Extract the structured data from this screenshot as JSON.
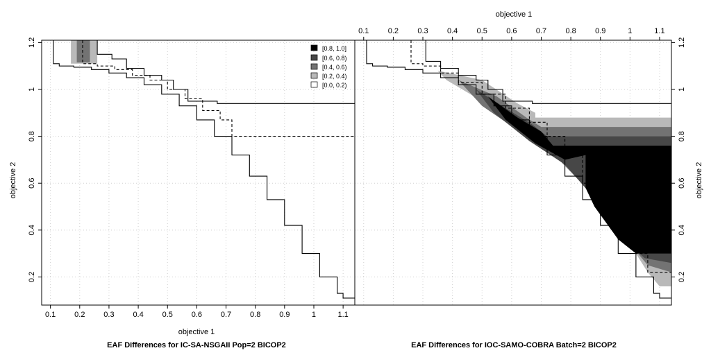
{
  "chart_data": {
    "type": "area",
    "xlim": [
      0.07,
      1.14
    ],
    "ylim": [
      0.08,
      1.21
    ],
    "grid": true,
    "x_ticks": [
      "0.1",
      "0.2",
      "0.3",
      "0.4",
      "0.5",
      "0.6",
      "0.7",
      "0.8",
      "0.9",
      "1",
      "1.1"
    ],
    "x_tick_values": [
      0.1,
      0.2,
      0.3,
      0.4,
      0.5,
      0.6,
      0.7,
      0.8,
      0.9,
      1.0,
      1.1
    ],
    "y_ticks": [
      "0.2",
      "0.4",
      "0.6",
      "0.8",
      "1",
      "1.2"
    ],
    "y_tick_values": [
      0.2,
      0.4,
      0.6,
      0.8,
      1.0,
      1.2
    ],
    "xlabel_bottom": "objective 1",
    "xlabel_top": "objective 1",
    "ylabel_right": "objective 2",
    "ylabel_left": "objective 2",
    "legend": {
      "position": "top-right of left panel",
      "entries": [
        {
          "label": "[0.8, 1.0]",
          "color": "#000000"
        },
        {
          "label": "[0.6, 0.8)",
          "color": "#474747"
        },
        {
          "label": "[0.4, 0.6)",
          "color": "#737373"
        },
        {
          "label": "[0.2, 0.4)",
          "color": "#b9b9b9"
        },
        {
          "label": "[0.0, 0.2)",
          "color": "#ffffff"
        }
      ]
    },
    "panels": [
      {
        "title": "EAF Differences for IC-SA-NSGAII Pop=2 BICOP2",
        "regions": [
          {
            "level": "[0.2, 0.4)",
            "color": "#b9b9b9",
            "points": [
              [
                0.17,
                1.21
              ],
              [
                0.17,
                1.11
              ],
              [
                0.26,
                1.11
              ],
              [
                0.26,
                1.21
              ]
            ]
          },
          {
            "level": "[0.4, 0.6)",
            "color": "#737373",
            "points": [
              [
                0.19,
                1.21
              ],
              [
                0.19,
                1.115
              ],
              [
                0.235,
                1.115
              ],
              [
                0.235,
                1.21
              ]
            ]
          }
        ],
        "lines": [
          {
            "name": "best",
            "style": "solid",
            "points": [
              [
                0.11,
                1.21
              ],
              [
                0.11,
                1.11
              ],
              [
                0.13,
                1.1
              ],
              [
                0.18,
                1.095
              ],
              [
                0.24,
                1.085
              ],
              [
                0.3,
                1.07
              ],
              [
                0.36,
                1.05
              ],
              [
                0.42,
                1.02
              ],
              [
                0.48,
                0.98
              ],
              [
                0.54,
                0.93
              ],
              [
                0.6,
                0.87
              ],
              [
                0.66,
                0.8
              ],
              [
                0.72,
                0.72
              ],
              [
                0.78,
                0.63
              ],
              [
                0.84,
                0.53
              ],
              [
                0.9,
                0.42
              ],
              [
                0.96,
                0.3
              ],
              [
                1.02,
                0.2
              ],
              [
                1.08,
                0.13
              ],
              [
                1.1,
                0.11
              ],
              [
                1.14,
                0.11
              ]
            ]
          },
          {
            "name": "median",
            "style": "dashed",
            "points": [
              [
                0.21,
                1.21
              ],
              [
                0.21,
                1.11
              ],
              [
                0.26,
                1.1
              ],
              [
                0.32,
                1.085
              ],
              [
                0.38,
                1.06
              ],
              [
                0.44,
                1.04
              ],
              [
                0.5,
                1.0
              ],
              [
                0.56,
                0.96
              ],
              [
                0.62,
                0.91
              ],
              [
                0.68,
                0.87
              ],
              [
                0.72,
                0.8
              ],
              [
                1.14,
                0.8
              ]
            ]
          },
          {
            "name": "worst",
            "style": "solid",
            "points": [
              [
                0.26,
                1.21
              ],
              [
                0.26,
                1.15
              ],
              [
                0.31,
                1.13
              ],
              [
                0.36,
                1.09
              ],
              [
                0.42,
                1.06
              ],
              [
                0.48,
                1.04
              ],
              [
                0.52,
                1.0
              ],
              [
                0.57,
                1.0
              ],
              [
                0.57,
                0.95
              ],
              [
                0.67,
                0.95
              ],
              [
                0.67,
                0.94
              ],
              [
                1.14,
                0.94
              ]
            ]
          }
        ]
      },
      {
        "title": "EAF Differences for IOC-SAMO-COBRA Batch=2 BICOP2",
        "regions": [
          {
            "level": "[0.2, 0.4)",
            "color": "#b9b9b9",
            "points": [
              [
                0.35,
                1.08
              ],
              [
                0.5,
                1.04
              ],
              [
                0.62,
                0.94
              ],
              [
                0.68,
                0.9
              ],
              [
                0.68,
                0.88
              ],
              [
                1.14,
                0.88
              ],
              [
                1.14,
                0.16
              ],
              [
                1.1,
                0.16
              ],
              [
                1.06,
                0.22
              ],
              [
                0.95,
                0.44
              ],
              [
                0.85,
                0.6
              ],
              [
                0.75,
                0.72
              ],
              [
                0.63,
                0.83
              ],
              [
                0.5,
                0.95
              ],
              [
                0.38,
                1.04
              ]
            ]
          },
          {
            "level": "[0.4, 0.6)",
            "color": "#737373",
            "points": [
              [
                0.42,
                1.04
              ],
              [
                0.55,
                0.97
              ],
              [
                0.65,
                0.88
              ],
              [
                0.7,
                0.84
              ],
              [
                1.14,
                0.84
              ],
              [
                1.14,
                0.22
              ],
              [
                1.06,
                0.25
              ],
              [
                0.96,
                0.4
              ],
              [
                0.86,
                0.57
              ],
              [
                0.76,
                0.7
              ],
              [
                0.65,
                0.8
              ],
              [
                0.5,
                0.93
              ]
            ]
          },
          {
            "level": "[0.6, 0.8)",
            "color": "#474747",
            "points": [
              [
                0.48,
                1.0
              ],
              [
                0.58,
                0.92
              ],
              [
                0.67,
                0.85
              ],
              [
                0.72,
                0.8
              ],
              [
                1.14,
                0.8
              ],
              [
                1.14,
                0.26
              ],
              [
                1.05,
                0.28
              ],
              [
                0.96,
                0.38
              ],
              [
                0.87,
                0.55
              ],
              [
                0.78,
                0.68
              ],
              [
                0.66,
                0.78
              ],
              [
                0.54,
                0.9
              ]
            ]
          },
          {
            "level": "[0.8, 1.0]",
            "color": "#000000",
            "points": [
              [
                0.52,
                0.97
              ],
              [
                0.62,
                0.88
              ],
              [
                0.7,
                0.82
              ],
              [
                0.74,
                0.76
              ],
              [
                1.14,
                0.76
              ],
              [
                1.14,
                0.3
              ],
              [
                1.02,
                0.3
              ],
              [
                0.96,
                0.36
              ],
              [
                0.88,
                0.5
              ],
              [
                0.85,
                0.58
              ],
              [
                0.85,
                0.72
              ],
              [
                0.78,
                0.7
              ],
              [
                0.68,
                0.77
              ],
              [
                0.58,
                0.87
              ]
            ]
          }
        ],
        "lines": [
          {
            "name": "best",
            "style": "solid",
            "points": [
              [
                0.11,
                1.21
              ],
              [
                0.11,
                1.11
              ],
              [
                0.13,
                1.1
              ],
              [
                0.18,
                1.095
              ],
              [
                0.24,
                1.085
              ],
              [
                0.3,
                1.07
              ],
              [
                0.36,
                1.05
              ],
              [
                0.42,
                1.02
              ],
              [
                0.48,
                0.98
              ],
              [
                0.54,
                0.93
              ],
              [
                0.6,
                0.87
              ],
              [
                0.66,
                0.8
              ],
              [
                0.72,
                0.72
              ],
              [
                0.78,
                0.63
              ],
              [
                0.84,
                0.53
              ],
              [
                0.9,
                0.42
              ],
              [
                0.96,
                0.3
              ],
              [
                1.02,
                0.2
              ],
              [
                1.08,
                0.13
              ],
              [
                1.1,
                0.11
              ],
              [
                1.14,
                0.11
              ]
            ]
          },
          {
            "name": "median",
            "style": "dashed",
            "points": [
              [
                0.26,
                1.21
              ],
              [
                0.26,
                1.11
              ],
              [
                0.3,
                1.1
              ],
              [
                0.36,
                1.07
              ],
              [
                0.42,
                1.03
              ],
              [
                0.5,
                0.98
              ],
              [
                0.58,
                0.92
              ],
              [
                0.66,
                0.86
              ],
              [
                0.72,
                0.8
              ],
              [
                0.78,
                0.74
              ],
              [
                0.84,
                0.6
              ],
              [
                0.9,
                0.48
              ],
              [
                0.96,
                0.38
              ],
              [
                1.02,
                0.3
              ],
              [
                1.06,
                0.22
              ],
              [
                1.14,
                0.22
              ]
            ]
          },
          {
            "name": "worst",
            "style": "solid",
            "points": [
              [
                0.31,
                1.21
              ],
              [
                0.31,
                1.12
              ],
              [
                0.36,
                1.09
              ],
              [
                0.42,
                1.06
              ],
              [
                0.48,
                1.04
              ],
              [
                0.52,
                1.0
              ],
              [
                0.57,
                1.0
              ],
              [
                0.57,
                0.95
              ],
              [
                0.67,
                0.95
              ],
              [
                0.67,
                0.94
              ],
              [
                1.14,
                0.94
              ]
            ]
          }
        ]
      }
    ]
  }
}
